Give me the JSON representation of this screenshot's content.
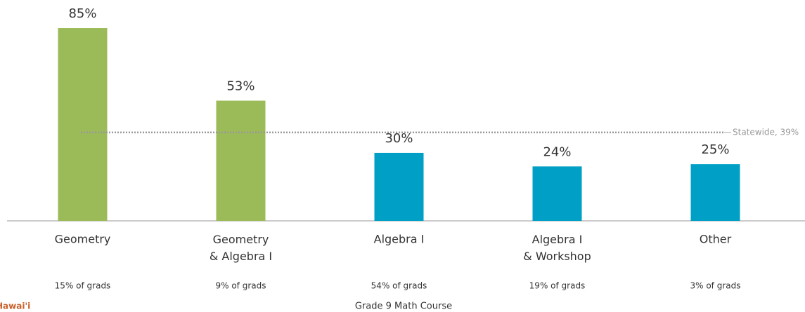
{
  "chart_data": {
    "type": "bar",
    "categories": [
      "Geometry",
      "Geometry\n& Algebra I",
      "Algebra I",
      "Algebra I\n& Workshop",
      "Other"
    ],
    "values": [
      85,
      53,
      30,
      24,
      25
    ],
    "value_labels": [
      "85%",
      "53%",
      "30%",
      "24%",
      "25%"
    ],
    "colors": [
      "#9bbb59",
      "#9bbb59",
      "#00a0c6",
      "#00a0c6",
      "#00a0c6"
    ],
    "sublabels": [
      "15% of grads",
      "9% of grads",
      "54% of grads",
      "19% of grads",
      "3% of grads"
    ],
    "reference": {
      "value": 39,
      "label": "Statewide, 39%"
    },
    "x_label": "Grade 9 Math Course",
    "logo": "Hawai'i",
    "ylim": [
      0,
      100
    ]
  }
}
